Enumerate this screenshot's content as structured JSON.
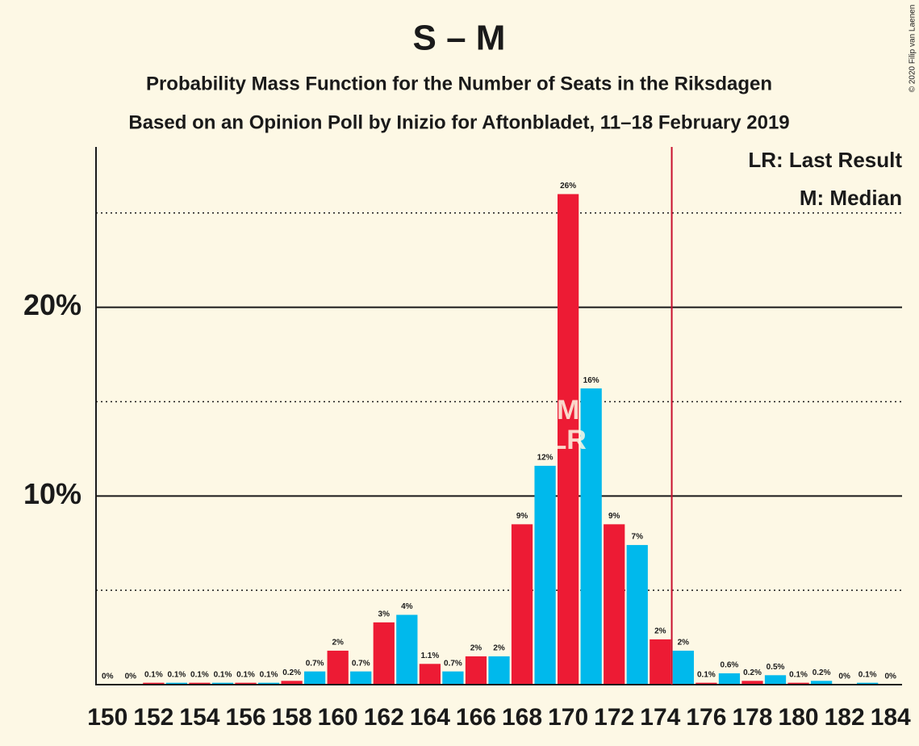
{
  "chart_data": {
    "type": "bar",
    "title": "S – M",
    "subtitle": "Probability Mass Function for the Number of Seats in the Riksdagen",
    "subtitle2": "Based on an Opinion Poll by Inizio for Aftonbladet, 11–18 February 2019",
    "copyright": "© 2020 Filip van Laenen",
    "legend": [
      "LR: Last Result",
      "M: Median"
    ],
    "categories": [
      "150",
      null,
      "152",
      null,
      "154",
      null,
      "156",
      null,
      "158",
      null,
      "160",
      null,
      "162",
      null,
      "164",
      null,
      "166",
      null,
      "168",
      null,
      "170",
      null,
      "172",
      null,
      "174",
      null,
      "176",
      null,
      "178",
      null,
      "180",
      null,
      "182",
      null,
      "184"
    ],
    "values": [
      0,
      0,
      0.1,
      0.1,
      0.1,
      0.1,
      0.1,
      0.1,
      0.2,
      0.7,
      1.8,
      0.7,
      3.3,
      3.7,
      1.1,
      0.7,
      1.5,
      1.5,
      8.5,
      11.6,
      26.0,
      15.7,
      8.5,
      7.4,
      2.4,
      1.8,
      0.1,
      0.6,
      0.2,
      0.5,
      0.1,
      0.2,
      0,
      0.1,
      0
    ],
    "value_labels": [
      "0%",
      "0%",
      "0.1%",
      "0.1%",
      "0.1%",
      "0.1%",
      "0.1%",
      "0.1%",
      "0.2%",
      "0.7%",
      "2%",
      "0.7%",
      "3%",
      "4%",
      "1.1%",
      "0.7%",
      "2%",
      "2%",
      "9%",
      "12%",
      "26%",
      "16%",
      "9%",
      "7%",
      "2%",
      "2%",
      "0.1%",
      "0.6%",
      "0.2%",
      "0.5%",
      "0.1%",
      "0.2%",
      "0%",
      "0.1%",
      "0%"
    ],
    "colors": [
      "#ed1b34",
      "#00b9ec"
    ],
    "ylim": [
      0,
      28.5
    ],
    "yticks": [
      {
        "value": 10,
        "label": "10%"
      },
      {
        "value": 20,
        "label": "20%"
      }
    ],
    "minor_yticks": [
      5,
      15,
      25
    ],
    "majority_index": 25,
    "majority_color": "#c8102e",
    "markers": [
      {
        "text": "M",
        "index": 20
      },
      {
        "text": "LR",
        "index": 20
      }
    ]
  }
}
